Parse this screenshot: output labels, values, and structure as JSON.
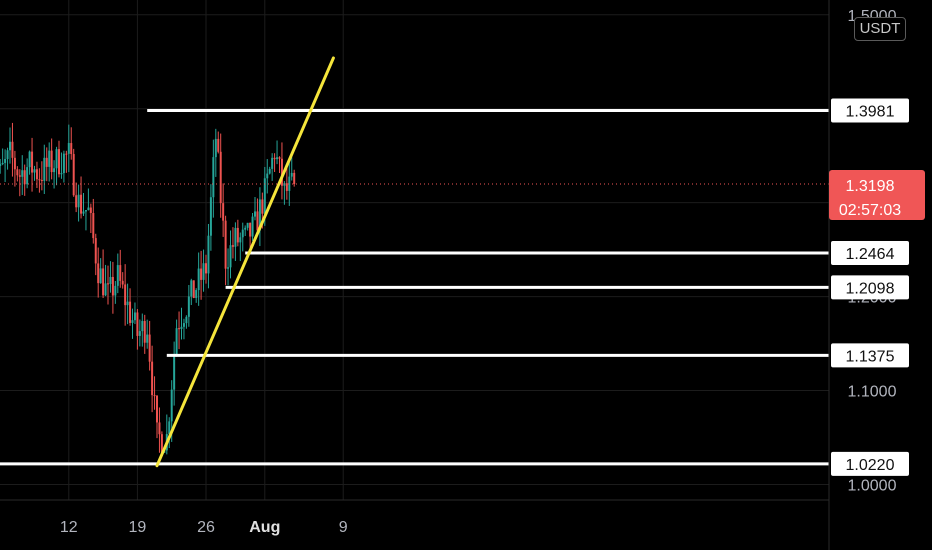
{
  "chart_data": {
    "type": "candlestick",
    "pair_currency": "USDT",
    "y_axis": {
      "ticks": [
        "1.5000",
        "1.1000",
        "1.0000"
      ],
      "partial_ticks": [
        "1.2000"
      ],
      "ylim": [
        0.97,
        1.52
      ],
      "tick_values": [
        1.5,
        1.1,
        1.0
      ]
    },
    "x_axis": {
      "ticks": [
        "12",
        "19",
        "26",
        "Aug",
        "9"
      ],
      "tick_dates": [
        "2022-07-12",
        "2022-07-19",
        "2022-07-26",
        "2022-08-01",
        "2022-08-09"
      ],
      "xlim": [
        "2022-07-04",
        "2022-08-13"
      ]
    },
    "current_price": {
      "label": "1.3198",
      "value": 1.3198,
      "countdown": "02:57:03"
    },
    "horizontal_levels": [
      {
        "label": "1.3981",
        "value": 1.3981,
        "from_date": "2022-07-20"
      },
      {
        "label": "1.2464",
        "value": 1.2464,
        "from_date": "2022-07-30"
      },
      {
        "label": "1.2098",
        "value": 1.2098,
        "from_date": "2022-07-28"
      },
      {
        "label": "1.1375",
        "value": 1.1375,
        "from_date": "2022-07-22"
      },
      {
        "label": "1.0220",
        "value": 1.022,
        "from_date": "2022-07-04"
      }
    ],
    "trendline": {
      "start": {
        "date": "2022-07-21",
        "value": 1.02
      },
      "end": {
        "date": "2022-08-08",
        "value": 1.454
      }
    },
    "price_path": [
      [
        "2022-07-04",
        1.36
      ],
      [
        "2022-07-05",
        1.33
      ],
      [
        "2022-07-06",
        1.35
      ],
      [
        "2022-07-07",
        1.33
      ],
      [
        "2022-07-08",
        1.34
      ],
      [
        "2022-07-09",
        1.33
      ],
      [
        "2022-07-10",
        1.34
      ],
      [
        "2022-07-11",
        1.345
      ],
      [
        "2022-07-12",
        1.35
      ],
      [
        "2022-07-13",
        1.3
      ],
      [
        "2022-07-14",
        1.29
      ],
      [
        "2022-07-15",
        1.23
      ],
      [
        "2022-07-16",
        1.2
      ],
      [
        "2022-07-17",
        1.22
      ],
      [
        "2022-07-18",
        1.19
      ],
      [
        "2022-07-19",
        1.16
      ],
      [
        "2022-07-20",
        1.17
      ],
      [
        "2022-07-21",
        1.05
      ],
      [
        "2022-07-22",
        1.05
      ],
      [
        "2022-07-23",
        1.17
      ],
      [
        "2022-07-24",
        1.19
      ],
      [
        "2022-07-25",
        1.21
      ],
      [
        "2022-07-26",
        1.23
      ],
      [
        "2022-07-27",
        1.37
      ],
      [
        "2022-07-28",
        1.24
      ],
      [
        "2022-07-29",
        1.26
      ],
      [
        "2022-07-30",
        1.26
      ],
      [
        "2022-07-31",
        1.275
      ],
      [
        "2022-08-01",
        1.31
      ],
      [
        "2022-08-02",
        1.355
      ],
      [
        "2022-08-03",
        1.31
      ],
      [
        "2022-08-04",
        1.3198
      ]
    ],
    "colors": {
      "background": "#000000",
      "up": "#26a69a",
      "down": "#ef5350",
      "levels": "#ffffff",
      "trendline": "#f5e53b",
      "price_badge": "#f05656",
      "price_line": "#f05656",
      "axis_text": "#b2b5be",
      "grid": "#1c1c1c"
    }
  }
}
